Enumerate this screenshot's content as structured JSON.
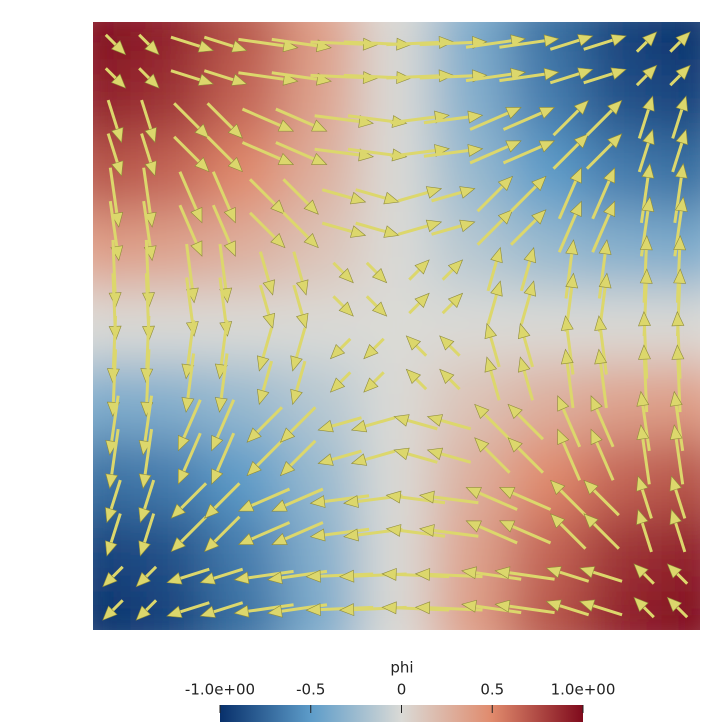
{
  "chart_data": {
    "type": "scalar-field",
    "colorbar_title": "phi",
    "clim": [
      -1,
      1
    ],
    "cticks": [
      {
        "value": -1,
        "label": "-1.0e+00"
      },
      -0.5,
      0,
      0.5,
      {
        "value": 1,
        "label": "1.0e+00"
      }
    ],
    "colors": [
      "#08306b",
      "#5d9cc9",
      "#dadad6",
      "#e08a6c",
      "#7f0a1c"
    ],
    "glyph_color": "#dcd76c",
    "grid": [
      [
        1,
        0.92,
        0.71,
        0.38,
        0,
        -0.38,
        -0.71,
        -0.92,
        -1
      ],
      [
        0.92,
        0.85,
        0.65,
        0.35,
        0,
        -0.35,
        -0.65,
        -0.85,
        -0.92
      ],
      [
        0.71,
        0.65,
        0.5,
        0.27,
        0,
        -0.27,
        -0.5,
        -0.65,
        -0.71
      ],
      [
        0.38,
        0.35,
        0.27,
        0.15,
        0,
        -0.15,
        -0.27,
        -0.35,
        -0.38
      ],
      [
        0,
        0,
        0,
        0,
        0,
        0,
        0,
        0,
        0
      ],
      [
        -0.38,
        -0.35,
        -0.27,
        -0.15,
        0,
        0.15,
        0.27,
        0.35,
        0.38
      ],
      [
        -0.71,
        -0.65,
        -0.5,
        -0.27,
        0,
        0.27,
        0.5,
        0.65,
        0.71
      ],
      [
        -0.92,
        -0.85,
        -0.65,
        -0.35,
        0,
        0.35,
        0.65,
        0.85,
        0.92
      ],
      [
        -1,
        -0.92,
        -0.71,
        -0.38,
        0,
        0.38,
        0.71,
        0.92,
        1
      ]
    ]
  }
}
